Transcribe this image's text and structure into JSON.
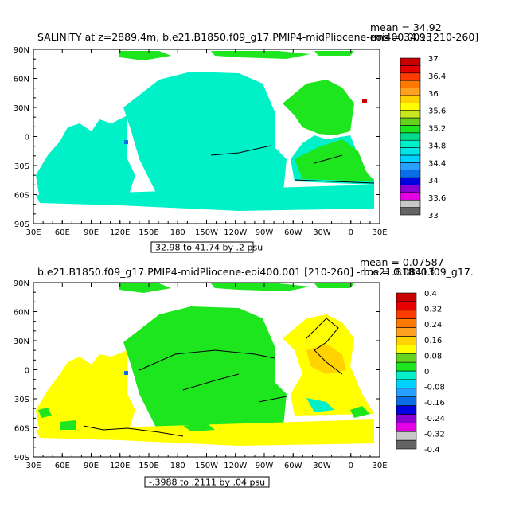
{
  "colors": {
    "panel1": [
      "#646464",
      "#c8c8c8",
      "#e600e6",
      "#8b00d2",
      "#0000e0",
      "#0a6fe6",
      "#28a0ff",
      "#00d2ff",
      "#00e6e6",
      "#00f0c8",
      "#00dc8c",
      "#1ee61e",
      "#64d21e",
      "#c8e61e",
      "#ffff00",
      "#ffd200",
      "#ffa01e",
      "#ff7800",
      "#ff3c00",
      "#e60000",
      "#c80000"
    ],
    "panel2": [
      "#646464",
      "#c8c8c8",
      "#e600e6",
      "#8b00d2",
      "#0000e0",
      "#0a6fe6",
      "#28a0ff",
      "#00d2ff",
      "#00f0c8",
      "#1ee61e",
      "#64d21e",
      "#ffff00",
      "#ffd200",
      "#ffa01e",
      "#ff7800",
      "#ff3c00",
      "#e60000",
      "#c80000"
    ],
    "land": "#ffffff",
    "contour": "#000000"
  },
  "chart_data": [
    {
      "type": "heatmap",
      "title": "SALINITY at z=2889.4m, b.e21.B1850.f09_g17.PMIP4-midPliocene-eoi400.001 [210-260]",
      "stats": [
        "mean = 34.92",
        "rms = 34.93"
      ],
      "xticks": [
        "30E",
        "60E",
        "90E",
        "120E",
        "150E",
        "180",
        "150W",
        "120W",
        "90W",
        "60W",
        "30W",
        "0",
        "30E"
      ],
      "yticks": [
        "90N",
        "60N",
        "30N",
        "0",
        "30S",
        "60S",
        "90S"
      ],
      "xlim": [
        30,
        390
      ],
      "ylim": [
        -90,
        90
      ],
      "colorbar_labels": [
        "37",
        "36.4",
        "36",
        "35.6",
        "35.2",
        "34.8",
        "34.4",
        "34",
        "33.6",
        "33"
      ],
      "colorbar_range": [
        33,
        37
      ],
      "range_label": "32.98 to 41.74 by .2 psu",
      "regions": {
        "pacific": 34.8,
        "indian": 34.8,
        "south_atlantic": 34.8,
        "north_atlantic": 35.0,
        "arctic": 35.0,
        "mediterranean": 37.0,
        "red_sea": 34.3
      }
    },
    {
      "type": "heatmap",
      "title": "b.e21.B1850.f09_g17.PMIP4-midPliocene-eoi400.001 [210-260] - b.e21.B1850.f09_g17.",
      "stats": [
        "mean = 0.07587",
        "rms = 0.08413"
      ],
      "xticks": [
        "30E",
        "60E",
        "90E",
        "120E",
        "150E",
        "180",
        "150W",
        "120W",
        "90W",
        "60W",
        "30W",
        "0",
        "30E"
      ],
      "yticks": [
        "90N",
        "60N",
        "30N",
        "0",
        "30S",
        "60S",
        "90S"
      ],
      "xlim": [
        30,
        390
      ],
      "ylim": [
        -90,
        90
      ],
      "colorbar_labels": [
        "0.4",
        "0.32",
        "0.24",
        "0.16",
        "0.08",
        "0",
        "-0.08",
        "-0.16",
        "-0.24",
        "-0.32",
        "-0.4"
      ],
      "colorbar_range": [
        -0.4,
        0.4
      ],
      "range_label": "-.3988 to .2111 by .04 psu",
      "regions": {
        "indian": 0.06,
        "pacific": 0.02,
        "north_atlantic": 0.1,
        "south_atlantic": 0.02,
        "southern_ocean": 0.06,
        "arctic": 0.02
      }
    }
  ]
}
